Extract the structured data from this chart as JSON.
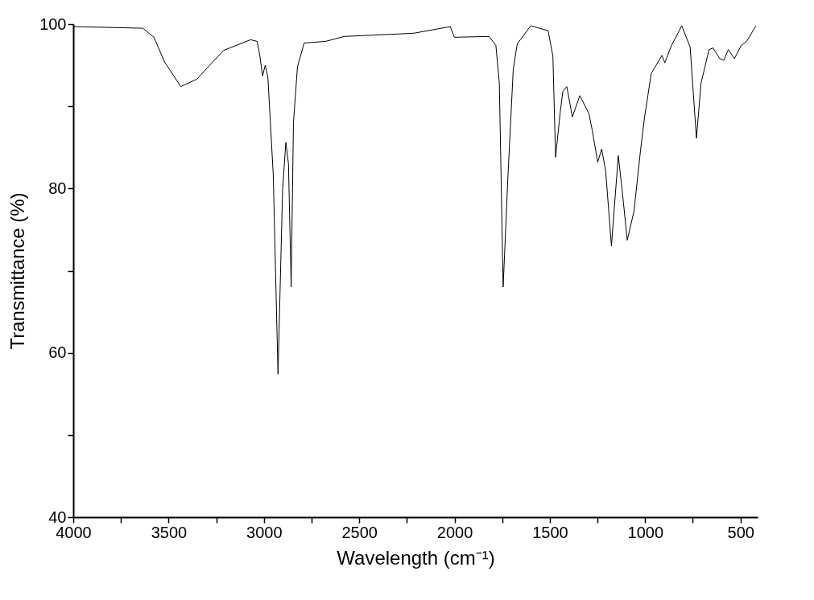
{
  "chart_data": {
    "type": "line",
    "xlabel": "Wavelength (cm⁻¹)",
    "ylabel": "Transmittance (%)",
    "x": [
      3999,
      3635,
      3577,
      3521,
      3436,
      3352,
      3212,
      3070,
      3035,
      3021,
      3007,
      2993,
      2979,
      2951,
      2926,
      2902,
      2885,
      2871,
      2857,
      2845,
      2824,
      2789,
      2677,
      2578,
      2297,
      2212,
      2022,
      2001,
      1819,
      1783,
      1765,
      1745,
      1720,
      1692,
      1671,
      1600,
      1509,
      1484,
      1470,
      1446,
      1432,
      1411,
      1382,
      1343,
      1295,
      1277,
      1249,
      1228,
      1207,
      1177,
      1141,
      1118,
      1094,
      1059,
      1024,
      1003,
      968,
      912,
      897,
      862,
      808,
      764,
      731,
      707,
      665,
      644,
      609,
      588,
      564,
      532,
      496,
      468,
      419
    ],
    "series": [
      {
        "color": "#000000",
        "values": [
          99.7,
          99.5,
          98.4,
          95.4,
          92.4,
          93.3,
          96.8,
          98.1,
          97.9,
          96.1,
          93.7,
          95.0,
          93.5,
          81.7,
          57.4,
          79.8,
          85.6,
          83.0,
          68.0,
          88.0,
          94.8,
          97.7,
          97.9,
          98.5,
          98.8,
          98.9,
          99.7,
          98.4,
          98.5,
          97.4,
          92.8,
          68.0,
          81.4,
          94.5,
          97.6,
          99.8,
          99.2,
          96.1,
          83.8,
          89.2,
          91.8,
          92.4,
          88.7,
          91.3,
          89.1,
          87.0,
          83.2,
          84.8,
          82.1,
          73.0,
          84.0,
          79.2,
          73.7,
          77.2,
          84.7,
          88.7,
          94.0,
          96.2,
          95.3,
          97.4,
          99.8,
          97.2,
          86.1,
          92.8,
          96.9,
          97.1,
          95.8,
          95.6,
          96.9,
          95.8,
          97.4,
          97.9,
          99.8
        ]
      }
    ],
    "xlim": [
      4000,
      410
    ],
    "xticks": [
      4000,
      {
        "value": 3750,
        "label": null
      },
      3500,
      {
        "value": 3250,
        "label": null
      },
      3000,
      {
        "value": 2750,
        "label": null
      },
      2500,
      {
        "value": 2250,
        "label": null
      },
      2000,
      {
        "value": 1750,
        "label": null
      },
      1500,
      {
        "value": 1250,
        "label": null
      },
      1000,
      {
        "value": 750,
        "label": null
      },
      500
    ],
    "ylim": [
      40,
      100
    ],
    "yticks": [
      40,
      {
        "value": 50,
        "label": null
      },
      60,
      {
        "value": 70,
        "label": null
      },
      80,
      {
        "value": 90,
        "label": null
      },
      100
    ],
    "grid": false,
    "line_style": "solid",
    "marker": "none"
  }
}
